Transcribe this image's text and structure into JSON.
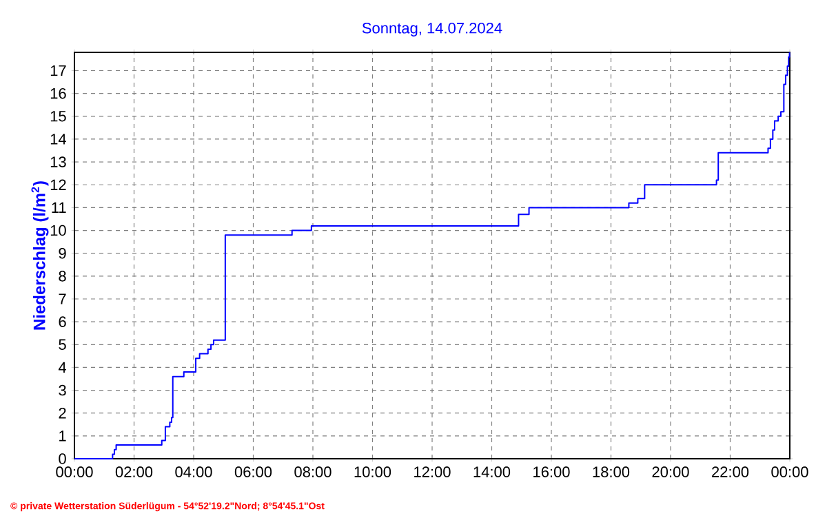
{
  "chart_data": {
    "type": "step",
    "title": "Sonntag, 14.07.2024",
    "ylabel": "Niederschlag (l/m$^{2}$)",
    "x": [
      0,
      1.28,
      1.34,
      1.4,
      2.93,
      3.05,
      3.2,
      3.26,
      3.3,
      3.67,
      4.07,
      4.2,
      4.48,
      4.58,
      4.67,
      5.06,
      7.3,
      7.95,
      14.9,
      15.25,
      18.6,
      18.9,
      19.13,
      21.54,
      21.6,
      23.27,
      23.35,
      23.43,
      23.49,
      23.61,
      23.7,
      23.8,
      23.86,
      23.92,
      23.96,
      23.99
    ],
    "series": [
      {
        "color": "#0000ff",
        "values": [
          0,
          0.2,
          0.4,
          0.6,
          0.8,
          1.4,
          1.6,
          1.8,
          3.6,
          3.8,
          4.4,
          4.6,
          4.8,
          5.0,
          5.2,
          9.8,
          10.0,
          10.2,
          10.7,
          11.0,
          11.2,
          11.4,
          12.0,
          12.2,
          13.4,
          13.6,
          14.0,
          14.4,
          14.8,
          15.0,
          15.2,
          16.4,
          16.8,
          17.2,
          17.6,
          17.8
        ]
      }
    ],
    "xlim": [
      0,
      24
    ],
    "ylim": [
      0,
      17.8
    ],
    "xticks": [
      {
        "value": 0,
        "label": "00:00"
      },
      {
        "value": 2,
        "label": "02:00"
      },
      {
        "value": 4,
        "label": "04:00"
      },
      {
        "value": 6,
        "label": "06:00"
      },
      {
        "value": 8,
        "label": "08:00"
      },
      {
        "value": 10,
        "label": "10:00"
      },
      {
        "value": 12,
        "label": "12:00"
      },
      {
        "value": 14,
        "label": "14:00"
      },
      {
        "value": 16,
        "label": "16:00"
      },
      {
        "value": 18,
        "label": "18:00"
      },
      {
        "value": 20,
        "label": "20:00"
      },
      {
        "value": 22,
        "label": "22:00"
      },
      {
        "value": 24,
        "label": "00:00"
      }
    ],
    "yticks": [
      0,
      1,
      2,
      3,
      4,
      5,
      6,
      7,
      8,
      9,
      10,
      11,
      12,
      13,
      14,
      15,
      16,
      17
    ],
    "grid": true,
    "line_style": "solid",
    "marker": "none",
    "annotations": [
      "© private Wetterstation Süderlügum - 54°52'19.2\"Nord; 8°54'45.1\"Ost"
    ]
  }
}
